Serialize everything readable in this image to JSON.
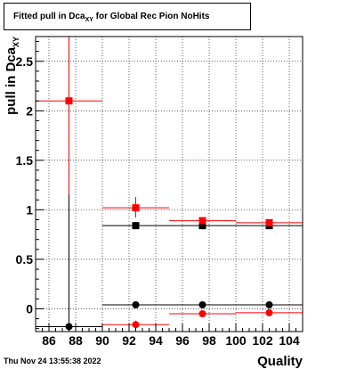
{
  "chart_data": {
    "type": "scatter",
    "title_main": "Fitted pull in Dca",
    "title_sub": "XY",
    "title_tail": " for Global Rec Pion NoHits",
    "xlabel": "Quality",
    "ylabel_main": "pull in Dca",
    "ylabel_sub": "XY",
    "xlim": [
      85,
      105
    ],
    "ylim": [
      -0.23,
      2.75
    ],
    "grid": true,
    "x_ticks": [
      86,
      88,
      90,
      92,
      94,
      96,
      98,
      100,
      102,
      104
    ],
    "x_tick_labels": [
      "86",
      "88",
      "90",
      "92",
      "94",
      "96",
      "98",
      "100",
      "102",
      "104"
    ],
    "y_ticks": [
      0,
      0.5,
      1,
      1.5,
      2,
      2.5
    ],
    "y_tick_labels": [
      "0",
      "0.5",
      "1",
      "1.5",
      "2",
      "2.5"
    ],
    "series": [
      {
        "color": "#000000",
        "marker": "square",
        "points": [
          {
            "x": 92.5,
            "xlo": 90,
            "xhi": 95,
            "y": 0.84,
            "ylo": 0.82,
            "yhi": 0.86
          },
          {
            "x": 97.5,
            "xlo": 95,
            "xhi": 100,
            "y": 0.84,
            "ylo": 0.83,
            "yhi": 0.85
          },
          {
            "x": 102.5,
            "xlo": 100,
            "xhi": 105,
            "y": 0.84,
            "ylo": 0.83,
            "yhi": 0.85
          }
        ]
      },
      {
        "color": "#000000",
        "marker": "circle",
        "points": [
          {
            "x": 87.5,
            "xlo": 85,
            "xhi": 90,
            "y": -0.18,
            "ylo": -0.23,
            "yhi": 2.75
          },
          {
            "x": 92.5,
            "xlo": 90,
            "xhi": 95,
            "y": 0.04,
            "ylo": 0.02,
            "yhi": 0.06
          },
          {
            "x": 97.5,
            "xlo": 95,
            "xhi": 100,
            "y": 0.04,
            "ylo": 0.03,
            "yhi": 0.05
          },
          {
            "x": 102.5,
            "xlo": 100,
            "xhi": 105,
            "y": 0.04,
            "ylo": 0.03,
            "yhi": 0.05
          }
        ]
      },
      {
        "color": "#ff0000",
        "marker": "square",
        "points": [
          {
            "x": 87.5,
            "xlo": 85,
            "xhi": 90,
            "y": 2.1,
            "ylo": 1.15,
            "yhi": 2.75
          },
          {
            "x": 92.5,
            "xlo": 90,
            "xhi": 95,
            "y": 1.02,
            "ylo": 0.92,
            "yhi": 1.13
          },
          {
            "x": 97.5,
            "xlo": 95,
            "xhi": 100,
            "y": 0.89,
            "ylo": 0.86,
            "yhi": 0.92
          },
          {
            "x": 102.5,
            "xlo": 100,
            "xhi": 105,
            "y": 0.87,
            "ylo": 0.85,
            "yhi": 0.9
          }
        ]
      },
      {
        "color": "#ff0000",
        "marker": "circle",
        "points": [
          {
            "x": 92.5,
            "xlo": 90,
            "xhi": 95,
            "y": -0.16,
            "ylo": -0.2,
            "yhi": -0.12
          },
          {
            "x": 97.5,
            "xlo": 95,
            "xhi": 100,
            "y": -0.05,
            "ylo": -0.07,
            "yhi": -0.03
          },
          {
            "x": 102.5,
            "xlo": 100,
            "xhi": 105,
            "y": -0.04,
            "ylo": -0.06,
            "yhi": -0.02
          }
        ]
      }
    ]
  },
  "footer": {
    "timestamp": "Thu Nov 24 13:55:38 2022"
  }
}
